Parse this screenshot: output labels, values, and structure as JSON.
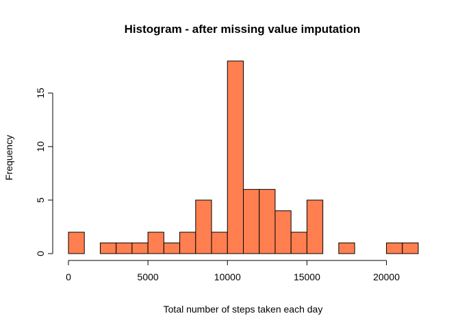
{
  "chart_data": {
    "type": "bar",
    "title": "Histogram - after missing value imputation",
    "xlabel": "Total number of steps taken each day",
    "ylabel": "Frequency",
    "bin_edges": [
      0,
      1000,
      2000,
      3000,
      4000,
      5000,
      6000,
      7000,
      8000,
      9000,
      10000,
      11000,
      12000,
      13000,
      14000,
      15000,
      16000,
      17000,
      18000,
      19000,
      20000,
      21000,
      22000
    ],
    "values": [
      2,
      0,
      1,
      1,
      1,
      2,
      1,
      2,
      5,
      2,
      18,
      6,
      6,
      4,
      2,
      5,
      0,
      1,
      0,
      0,
      1,
      1
    ],
    "xlim": [
      0,
      22000
    ],
    "ylim": [
      0,
      18
    ],
    "x_ticks": [
      0,
      5000,
      10000,
      15000,
      20000
    ],
    "y_ticks": [
      0,
      5,
      10,
      15
    ],
    "bar_color": "#FF7F50",
    "grid": false,
    "legend": "none"
  }
}
